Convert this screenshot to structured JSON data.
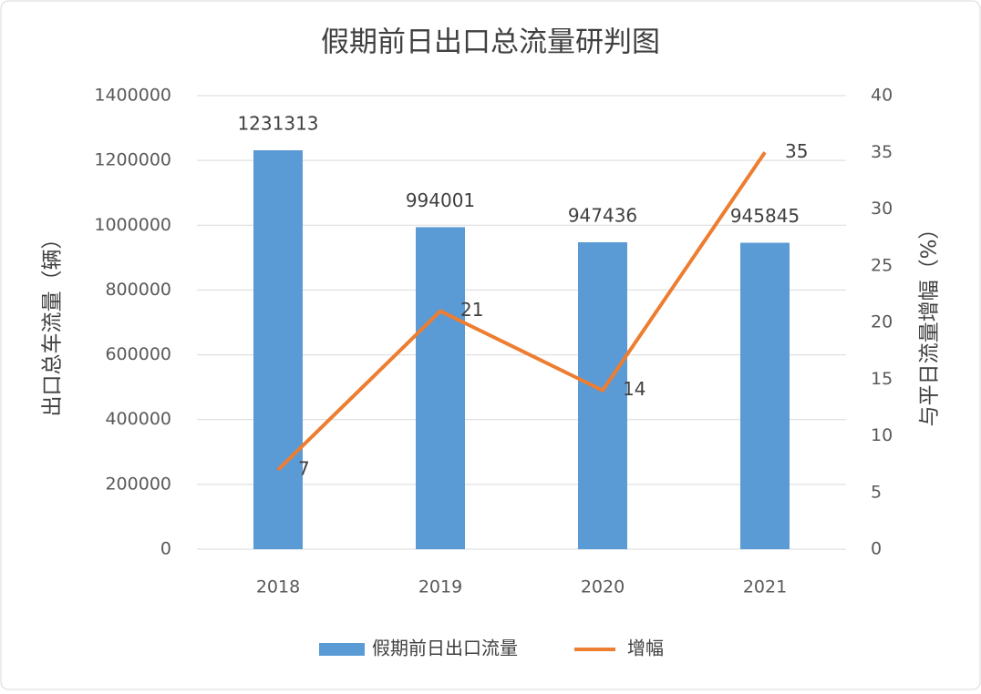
{
  "chart_data": {
    "type": "combo",
    "title": "假期前日出口总流量研判图",
    "categories": [
      "2018",
      "2019",
      "2020",
      "2021"
    ],
    "series": [
      {
        "name": "假期前日出口流量",
        "type": "bar",
        "color": "#5b9bd5",
        "values": [
          1231313,
          994001,
          947436,
          945845
        ]
      },
      {
        "name": "增幅",
        "type": "line",
        "axis": "y2",
        "color": "#ed7d31",
        "values": [
          7,
          21,
          14,
          35
        ]
      }
    ],
    "y_label": "出口总车流量（辆）",
    "y2_label": "与平日流量增幅（%）",
    "ylim": [
      0,
      1400000
    ],
    "yticks": [
      0,
      200000,
      400000,
      600000,
      800000,
      1000000,
      1200000,
      1400000
    ],
    "y2lim": [
      0,
      40
    ],
    "y2ticks": [
      0,
      5,
      10,
      15,
      20,
      25,
      30,
      35,
      40
    ],
    "grid": true,
    "legend": "bottom"
  }
}
